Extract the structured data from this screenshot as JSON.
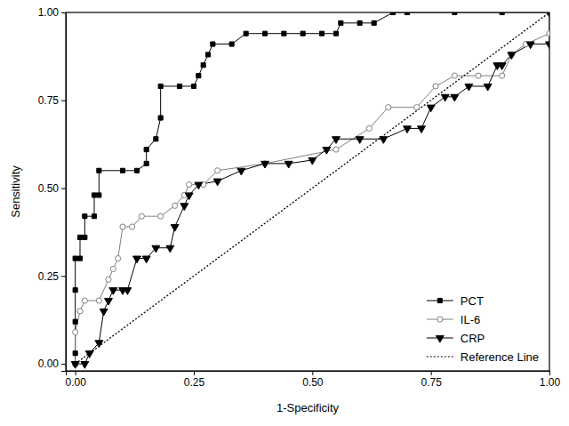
{
  "chart_data": {
    "type": "line",
    "x_label": "1-Specificity",
    "y_label": "Sensitivity",
    "xlim": [
      -0.02,
      1.0
    ],
    "ylim": [
      -0.02,
      1.0
    ],
    "xticks": [
      {
        "value": 0,
        "label": "0.00"
      },
      {
        "value": 0.25,
        "label": "0.25"
      },
      {
        "value": 0.5,
        "label": "0.50"
      },
      {
        "value": 0.75,
        "label": "0.75"
      },
      {
        "value": 1,
        "label": "1.00"
      }
    ],
    "yticks": [
      {
        "value": 0,
        "label": "0.00"
      },
      {
        "value": 0.25,
        "label": "0.25"
      },
      {
        "value": 0.5,
        "label": "0.50"
      },
      {
        "value": 0.75,
        "label": "0.75"
      },
      {
        "value": 1,
        "label": "1.00"
      }
    ],
    "legend": "lower right",
    "series": [
      {
        "name": "PCT",
        "color": "#000000",
        "marker": "square",
        "line_style": "solid",
        "x": [
          0,
          0,
          0,
          0,
          0,
          0.01,
          0.01,
          0.02,
          0.02,
          0.04,
          0.04,
          0.05,
          0.05,
          0.1,
          0.13,
          0.15,
          0.15,
          0.17,
          0.18,
          0.18,
          0.22,
          0.25,
          0.26,
          0.27,
          0.28,
          0.29,
          0.33,
          0.36,
          0.4,
          0.44,
          0.48,
          0.52,
          0.55,
          0.56,
          0.6,
          0.63,
          0.67,
          0.7,
          0.8,
          0.9,
          1.0
        ],
        "values": [
          0,
          0.03,
          0.12,
          0.21,
          0.3,
          0.3,
          0.36,
          0.36,
          0.42,
          0.42,
          0.48,
          0.48,
          0.55,
          0.55,
          0.55,
          0.57,
          0.61,
          0.64,
          0.7,
          0.79,
          0.79,
          0.79,
          0.82,
          0.85,
          0.88,
          0.91,
          0.91,
          0.94,
          0.94,
          0.94,
          0.94,
          0.94,
          0.94,
          0.97,
          0.97,
          0.97,
          1.0,
          1.0,
          1.0,
          1.0,
          1.0
        ]
      },
      {
        "name": "IL-6",
        "color": "#808080",
        "marker": "open-circle",
        "line_style": "solid",
        "x": [
          0,
          0,
          0.01,
          0.02,
          0.05,
          0.07,
          0.08,
          0.09,
          0.1,
          0.12,
          0.14,
          0.18,
          0.21,
          0.23,
          0.24,
          0.27,
          0.3,
          0.4,
          0.55,
          0.62,
          0.66,
          0.72,
          0.76,
          0.8,
          0.85,
          0.9,
          0.92,
          0.95,
          1.0,
          1.0
        ],
        "values": [
          0,
          0.09,
          0.15,
          0.18,
          0.18,
          0.24,
          0.27,
          0.3,
          0.39,
          0.39,
          0.42,
          0.42,
          0.45,
          0.48,
          0.51,
          0.51,
          0.55,
          0.57,
          0.61,
          0.67,
          0.73,
          0.73,
          0.79,
          0.82,
          0.82,
          0.82,
          0.88,
          0.91,
          0.94,
          1.0
        ]
      },
      {
        "name": "CRP",
        "color": "#000000",
        "marker": "triangle-down",
        "line_style": "solid",
        "x": [
          0,
          0.02,
          0.03,
          0.05,
          0.06,
          0.07,
          0.08,
          0.1,
          0.11,
          0.13,
          0.15,
          0.17,
          0.2,
          0.21,
          0.23,
          0.24,
          0.26,
          0.3,
          0.35,
          0.4,
          0.45,
          0.5,
          0.53,
          0.55,
          0.6,
          0.65,
          0.7,
          0.73,
          0.75,
          0.78,
          0.8,
          0.83,
          0.87,
          0.89,
          0.9,
          0.92,
          0.96,
          1.0,
          1.0
        ],
        "values": [
          0,
          0,
          0.03,
          0.06,
          0.15,
          0.18,
          0.21,
          0.21,
          0.21,
          0.3,
          0.3,
          0.33,
          0.33,
          0.39,
          0.45,
          0.48,
          0.51,
          0.52,
          0.55,
          0.57,
          0.57,
          0.58,
          0.61,
          0.64,
          0.64,
          0.64,
          0.67,
          0.67,
          0.73,
          0.76,
          0.76,
          0.79,
          0.79,
          0.85,
          0.85,
          0.88,
          0.91,
          0.91,
          1.0
        ]
      },
      {
        "name": "Reference Line",
        "color": "#000000",
        "marker": "none",
        "line_style": "dotted",
        "x": [
          0,
          1
        ],
        "values": [
          0,
          1
        ]
      }
    ]
  }
}
